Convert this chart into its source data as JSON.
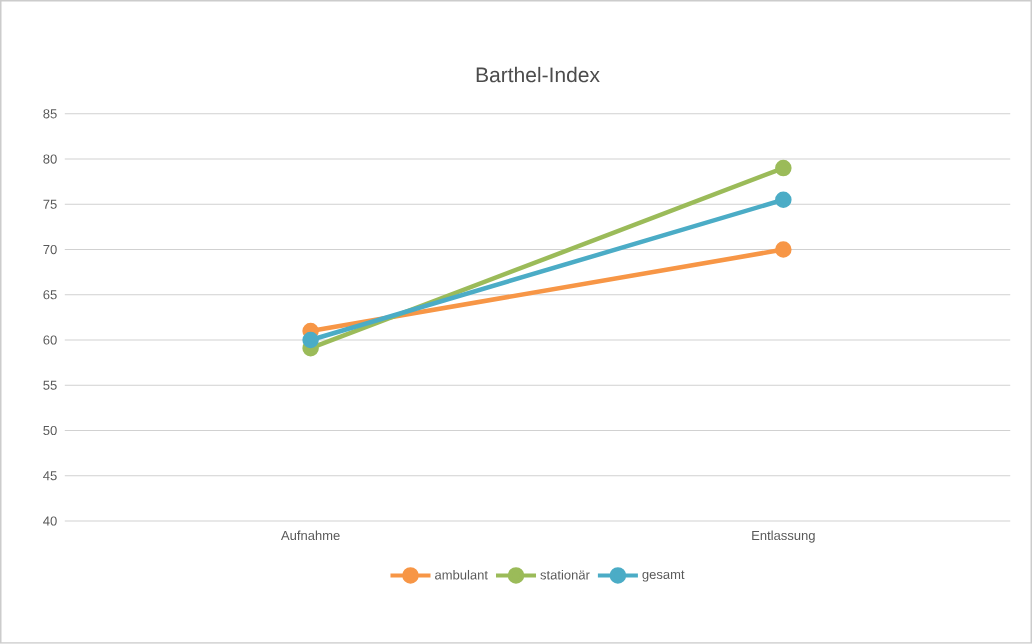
{
  "chart_data": {
    "type": "line",
    "title": "Barthel-Index",
    "categories": [
      "Aufnahme",
      "Entlassung"
    ],
    "series": [
      {
        "name": "ambulant",
        "color": "#f79646",
        "values": [
          61,
          70
        ]
      },
      {
        "name": "stationär",
        "color": "#9bbb59",
        "values": [
          59.1,
          79
        ]
      },
      {
        "name": "gesamt",
        "color": "#4bacc6",
        "values": [
          60,
          75.5
        ]
      }
    ],
    "ylim": [
      40,
      85
    ],
    "yticks": [
      40,
      45,
      50,
      55,
      60,
      65,
      70,
      75,
      80,
      85
    ],
    "grid": "y",
    "legend": "bottom",
    "marker": "circle",
    "line_style": "solid"
  }
}
